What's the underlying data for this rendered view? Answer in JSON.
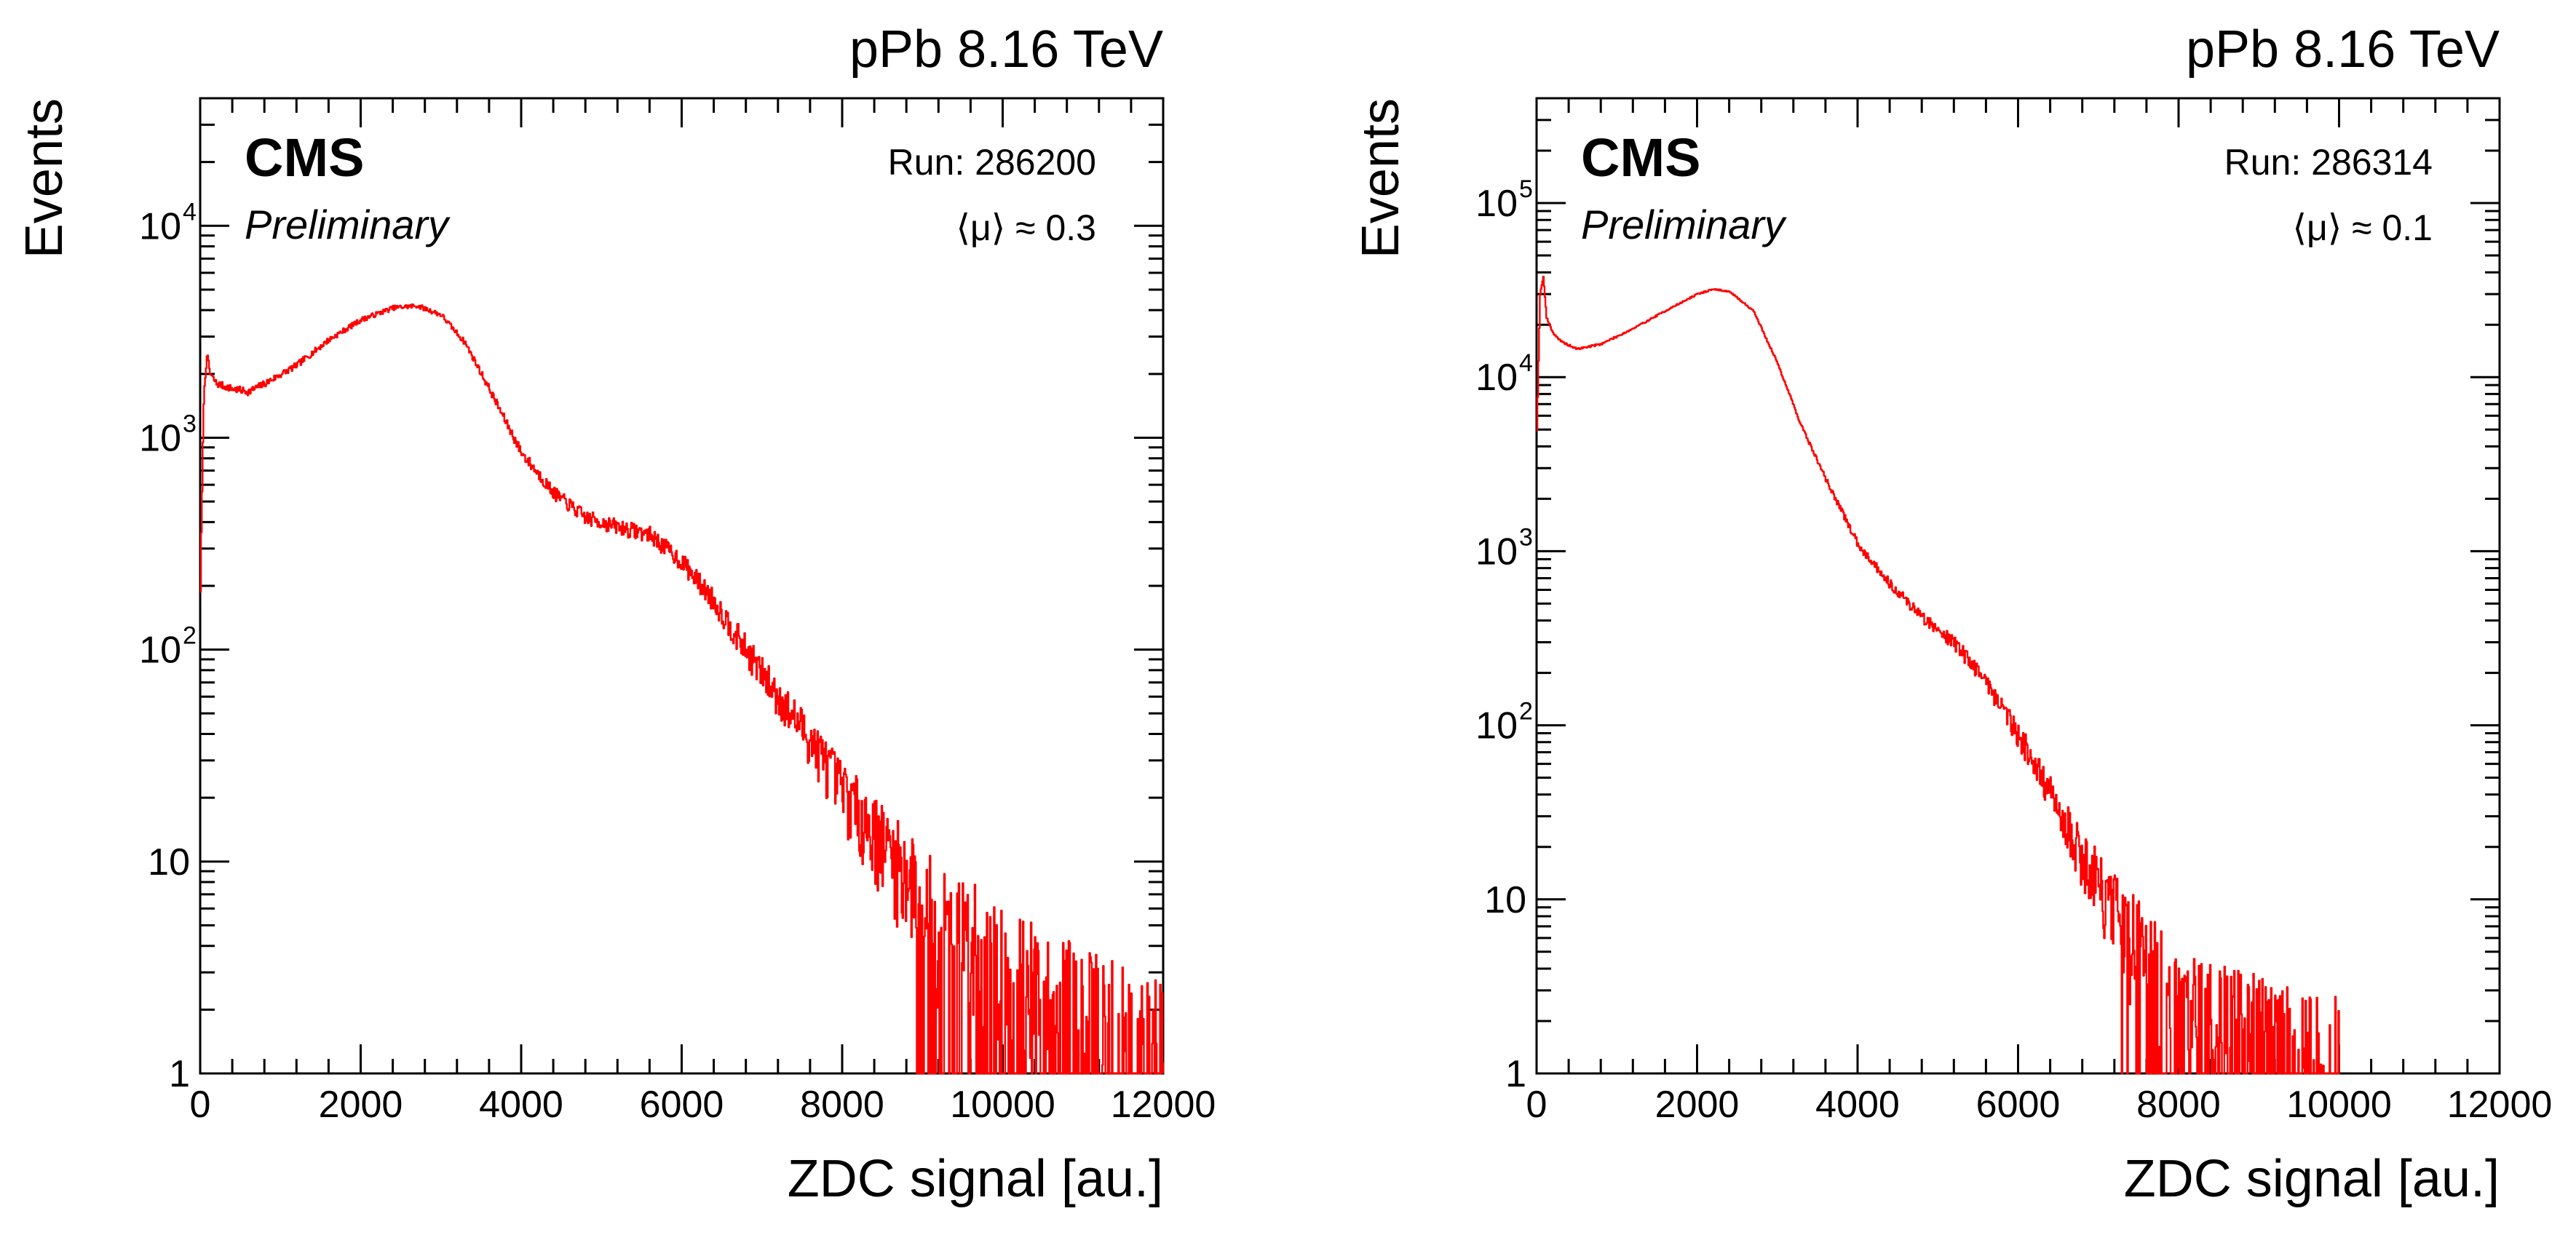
{
  "chart_data": [
    {
      "type": "line",
      "panel": "left",
      "title": "pPb 8.16 TeV",
      "experiment": "CMS",
      "status": "Preliminary",
      "run_label": "Run: 286200",
      "mu_label": "⟨μ⟩ ≈ 0.3",
      "xlabel": "ZDC signal [au.]",
      "ylabel": "Events",
      "xlim": [
        0,
        12000
      ],
      "ylim": [
        1,
        40000
      ],
      "yscale": "log",
      "grid": false,
      "x_ticks": [
        0,
        2000,
        4000,
        6000,
        8000,
        10000,
        12000
      ],
      "x_tick_labels": [
        "0",
        "2000",
        "4000",
        "6000",
        "8000",
        "10000",
        "12000"
      ],
      "y_ticks": [
        1,
        10,
        100,
        1000,
        10000
      ],
      "y_tick_labels": [
        {
          "base": "1",
          "exp": ""
        },
        {
          "base": "10",
          "exp": ""
        },
        {
          "base": "10",
          "exp": "2"
        },
        {
          "base": "10",
          "exp": "3"
        },
        {
          "base": "10",
          "exp": "4"
        }
      ],
      "series": [
        {
          "name": "Run 286200",
          "color": "#ff0000",
          "x": [
            0,
            40,
            80,
            120,
            200,
            400,
            600,
            800,
            1200,
            1600,
            2000,
            2400,
            2700,
            3000,
            3300,
            3600,
            4000,
            4400,
            4800,
            5200,
            5600,
            6000,
            6400,
            6800,
            7200,
            7600,
            8000,
            8400,
            8800,
            9200,
            9600,
            10000,
            10400,
            10800,
            11200,
            11600,
            12000
          ],
          "values": [
            200,
            1500,
            2500,
            2000,
            1800,
            1700,
            1650,
            1800,
            2200,
            2900,
            3600,
            4100,
            4200,
            3800,
            2800,
            1700,
            850,
            550,
            420,
            380,
            350,
            260,
            170,
            100,
            60,
            38,
            22,
            14,
            9,
            6,
            4.5,
            3.2,
            2.5,
            2.0,
            1.6,
            1.3,
            1.1
          ]
        }
      ]
    },
    {
      "type": "line",
      "panel": "right",
      "title": "pPb 8.16 TeV",
      "experiment": "CMS",
      "status": "Preliminary",
      "run_label": "Run: 286314",
      "mu_label": "⟨μ⟩ ≈ 0.1",
      "xlabel": "ZDC signal [au.]",
      "ylabel": "Events",
      "xlim": [
        0,
        12000
      ],
      "ylim": [
        1,
        400000
      ],
      "yscale": "log",
      "grid": false,
      "x_ticks": [
        0,
        2000,
        4000,
        6000,
        8000,
        10000,
        12000
      ],
      "x_tick_labels": [
        "0",
        "2000",
        "4000",
        "6000",
        "8000",
        "10000",
        "12000"
      ],
      "y_ticks": [
        1,
        10,
        100,
        1000,
        10000,
        100000
      ],
      "y_tick_labels": [
        {
          "base": "1",
          "exp": ""
        },
        {
          "base": "10",
          "exp": ""
        },
        {
          "base": "10",
          "exp": "2"
        },
        {
          "base": "10",
          "exp": "3"
        },
        {
          "base": "10",
          "exp": "4"
        },
        {
          "base": "10",
          "exp": "5"
        }
      ],
      "series": [
        {
          "name": "Run 286314",
          "color": "#ff0000",
          "x": [
            0,
            40,
            80,
            120,
            200,
            300,
            500,
            800,
            1200,
            1600,
            2000,
            2200,
            2400,
            2700,
            3000,
            3300,
            3600,
            4000,
            4400,
            4800,
            5200,
            5600,
            6000,
            6400,
            6800,
            7200,
            7600,
            8000,
            8400,
            8800,
            9200,
            9600,
            10000
          ],
          "values": [
            5000,
            30000,
            38000,
            22000,
            18000,
            16000,
            14500,
            15500,
            19000,
            24000,
            30000,
            32000,
            31000,
            24000,
            12000,
            5200,
            2600,
            1100,
            650,
            420,
            300,
            180,
            90,
            40,
            18,
            9,
            5,
            3.2,
            2.2,
            1.7,
            1.4,
            1.2,
            1.1
          ]
        }
      ]
    }
  ]
}
